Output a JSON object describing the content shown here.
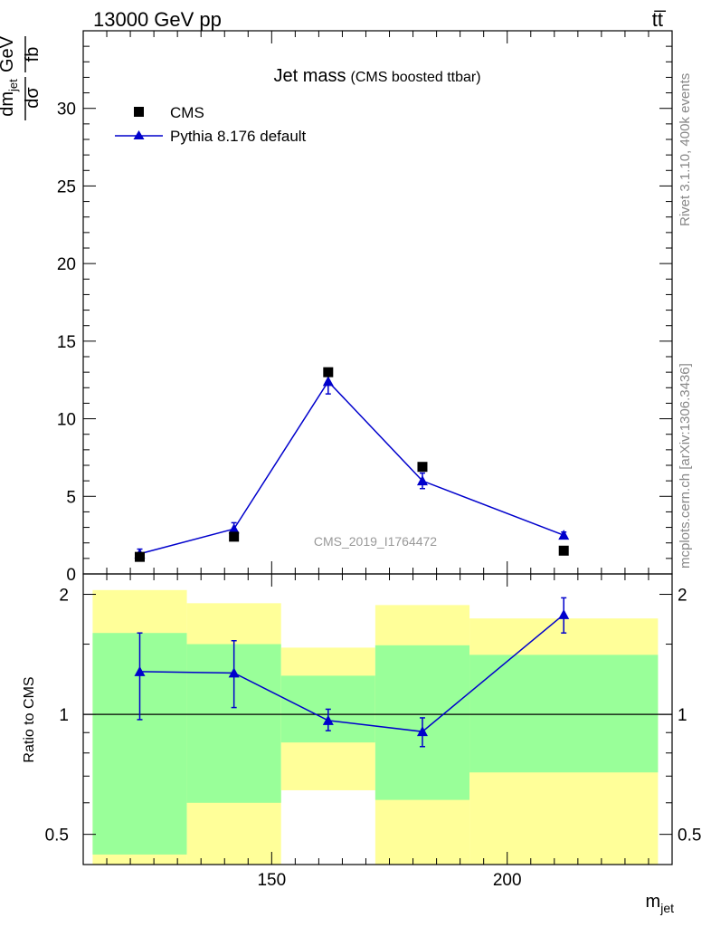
{
  "header": {
    "beam": "13000 GeV pp",
    "process": "tt̅"
  },
  "plot": {
    "title": "Jet mass",
    "subtitle": "(CMS boosted ttbar)",
    "watermark": "CMS_2019_I1764472",
    "side_label_top": "Rivet 3.1.10,  400k events",
    "side_label_bottom": "mcplots.cern.ch [arXiv:1306.3436]",
    "colors": {
      "mc": "#0000cc",
      "data": "#000000",
      "band_inner": "#99ff99",
      "band_outer": "#ffff99"
    }
  },
  "chart_data": [
    {
      "type": "scatter",
      "title": "Jet mass",
      "subtitle": "(CMS boosted ttbar)",
      "xlabel": "m_jet",
      "ylabel": "dσ/dm_jet [fb/GeV]",
      "xlim": [
        110,
        235
      ],
      "ylim": [
        0,
        35
      ],
      "yticks": [
        0,
        5,
        10,
        15,
        20,
        25,
        30
      ],
      "xticks": [
        150,
        200
      ],
      "legend_position": "top-left",
      "series": [
        {
          "name": "CMS",
          "marker": "square",
          "x": [
            122,
            142,
            162,
            182,
            212
          ],
          "y": [
            1.1,
            2.4,
            13.0,
            6.9,
            1.5
          ]
        },
        {
          "name": "Pythia 8.176 default",
          "marker": "triangle",
          "line": true,
          "x": [
            122,
            142,
            162,
            182,
            212
          ],
          "y": [
            1.3,
            2.9,
            12.4,
            6.0,
            2.5
          ],
          "yerr": [
            0.3,
            0.4,
            0.8,
            0.5,
            0.2
          ]
        }
      ]
    },
    {
      "type": "line",
      "ylabel": "Ratio to CMS",
      "xlabel": "m_jet",
      "xlim": [
        110,
        235
      ],
      "ylim": [
        0.42,
        2.25
      ],
      "yscale": "log",
      "yticks": [
        0.5,
        1,
        2
      ],
      "xticks": [
        150,
        200
      ],
      "reference_line": 1,
      "bands": [
        {
          "x0": 112,
          "x1": 132,
          "inner": [
            0.445,
            1.6
          ],
          "outer": [
            0.4,
            2.05
          ]
        },
        {
          "x0": 132,
          "x1": 152,
          "inner": [
            0.6,
            1.5
          ],
          "outer": [
            0.4,
            1.9
          ]
        },
        {
          "x0": 152,
          "x1": 172,
          "inner": [
            0.85,
            1.25
          ],
          "outer": [
            0.645,
            1.47
          ]
        },
        {
          "x0": 172,
          "x1": 192,
          "inner": [
            0.61,
            1.49
          ],
          "outer": [
            0.4,
            1.88
          ]
        },
        {
          "x0": 192,
          "x1": 232,
          "inner": [
            0.715,
            1.41
          ],
          "outer": [
            0.4,
            1.74
          ]
        }
      ],
      "series": [
        {
          "name": "Pythia 8.176 default",
          "marker": "triangle",
          "x": [
            122,
            142,
            162,
            182,
            212
          ],
          "y": [
            1.28,
            1.27,
            0.965,
            0.905,
            1.78
          ],
          "ylo": [
            0.97,
            1.04,
            0.91,
            0.83,
            1.6
          ],
          "yhi": [
            1.6,
            1.53,
            1.03,
            0.98,
            1.96
          ]
        }
      ]
    }
  ]
}
